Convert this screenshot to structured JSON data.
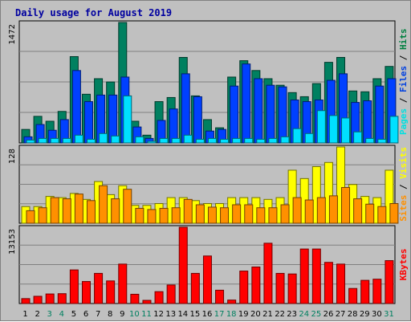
{
  "chart_data": {
    "type": "bar",
    "title": "Daily usage for August 2019",
    "categories": [
      "1",
      "2",
      "3",
      "4",
      "5",
      "6",
      "7",
      "8",
      "9",
      "10",
      "11",
      "12",
      "13",
      "14",
      "15",
      "16",
      "17",
      "18",
      "19",
      "20",
      "21",
      "22",
      "23",
      "24",
      "25",
      "26",
      "27",
      "28",
      "29",
      "30",
      "31"
    ],
    "weekend_days": [
      "3",
      "4",
      "10",
      "11",
      "17",
      "18",
      "24",
      "25",
      "31"
    ],
    "panels": [
      {
        "id": "top",
        "max_label": "1472",
        "ylim": [
          0,
          1472
        ],
        "grid": true,
        "side_labels": [
          {
            "text": "Pages",
            "color": "#00e0e0"
          },
          {
            "text": "Files",
            "color": "#0040e0"
          },
          {
            "text": "Hits",
            "color": "#008040"
          }
        ],
        "series": [
          {
            "name": "Hits",
            "color": "#008060",
            "values": [
              165,
              325,
              265,
              385,
              1055,
              595,
              785,
              745,
              1472,
              265,
              95,
              505,
              555,
              1045,
              575,
              285,
              185,
              805,
              1005,
              885,
              785,
              705,
              615,
              565,
              725,
              985,
              1045,
              635,
              625,
              785,
              935
            ]
          },
          {
            "name": "Files",
            "color": "#0040ff",
            "values": [
              75,
              225,
              155,
              285,
              885,
              505,
              585,
              585,
              805,
              195,
              55,
              275,
              415,
              845,
              565,
              145,
              165,
              695,
              965,
              785,
              705,
              685,
              525,
              505,
              525,
              765,
              845,
              495,
              515,
              695,
              785
            ]
          },
          {
            "name": "Pages",
            "color": "#00e0ff",
            "values": [
              35,
              55,
              55,
              55,
              95,
              45,
              115,
              85,
              575,
              75,
              20,
              55,
              55,
              95,
              45,
              55,
              45,
              55,
              55,
              45,
              55,
              75,
              175,
              115,
              395,
              335,
              305,
              135,
              55,
              45,
              325
            ]
          }
        ]
      },
      {
        "id": "middle",
        "max_label": "128",
        "ylim": [
          0,
          128
        ],
        "grid": true,
        "side_labels": [
          {
            "text": "Sites",
            "color": "#ff9000"
          },
          {
            "text": "Visits",
            "color": "#ffff00"
          }
        ],
        "series": [
          {
            "name": "Visits",
            "color": "#ffff00",
            "values": [
              28,
              28,
              45,
              43,
              50,
              40,
              70,
              48,
              63,
              30,
              30,
              33,
              43,
              43,
              38,
              33,
              33,
              43,
              43,
              43,
              40,
              43,
              89,
              75,
              95,
              102,
              128,
              65,
              45,
              43,
              89
            ]
          },
          {
            "name": "Sites",
            "color": "#ff9000",
            "values": [
              21,
              26,
              43,
              41,
              49,
              38,
              63,
              41,
              57,
              25,
              23,
              25,
              26,
              40,
              31,
              27,
              26,
              31,
              31,
              26,
              26,
              31,
              43,
              39,
              43,
              46,
              60,
              41,
              32,
              28,
              33
            ]
          }
        ]
      },
      {
        "id": "bottom",
        "max_label": "13153",
        "ylim": [
          0,
          13153
        ],
        "grid": true,
        "side_labels": [
          {
            "text": "KBytes",
            "color": "#ff0000"
          }
        ],
        "series": [
          {
            "name": "KBytes",
            "color": "#ff0000",
            "values": [
              850,
              1250,
              1650,
              1700,
              5800,
              3800,
              5200,
              3900,
              6800,
              1600,
              550,
              2050,
              3200,
              13153,
              5200,
              8200,
              2300,
              600,
              5600,
              6300,
              10400,
              5200,
              5100,
              9400,
              9400,
              7100,
              6800,
              2600,
              4000,
              4200,
              7400
            ]
          }
        ]
      }
    ]
  }
}
